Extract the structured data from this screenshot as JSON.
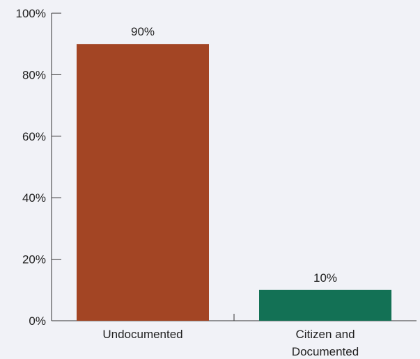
{
  "chart_data": {
    "type": "bar",
    "title": "",
    "xlabel": "",
    "ylabel": "",
    "ylim": [
      0,
      100
    ],
    "y_ticks": [
      0,
      20,
      40,
      60,
      80,
      100
    ],
    "y_tick_labels": [
      "0%",
      "20%",
      "40%",
      "60%",
      "80%",
      "100%"
    ],
    "categories": [
      [
        "Undocumented"
      ],
      [
        "Citizen and",
        "Documented"
      ]
    ],
    "values": [
      90,
      10
    ],
    "value_labels": [
      "90%",
      "10%"
    ],
    "colors": [
      "#a34524",
      "#137155"
    ],
    "grid": false,
    "legend": "none"
  }
}
